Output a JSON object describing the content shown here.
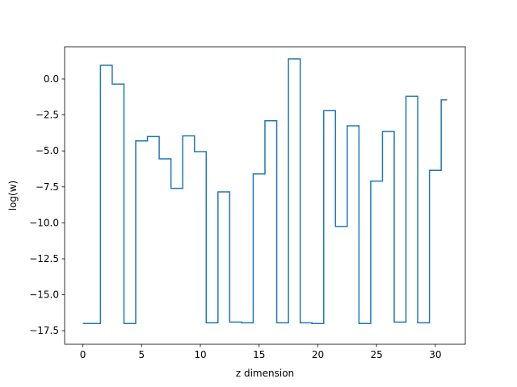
{
  "chart_data": {
    "type": "line",
    "drawstyle": "steps-mid",
    "xlabel": "z dimension",
    "ylabel": "log(w)",
    "xlim": [
      -1.55,
      32.55
    ],
    "ylim": [
      -18.44,
      2.24
    ],
    "xticks": [
      0,
      5,
      10,
      15,
      20,
      25,
      30
    ],
    "xtick_labels": [
      "0",
      "5",
      "10",
      "15",
      "20",
      "25",
      "30"
    ],
    "yticks": [
      -17.5,
      -15.0,
      -12.5,
      -10.0,
      -7.5,
      -5.0,
      -2.5,
      0.0
    ],
    "ytick_labels": [
      "−17.5",
      "−15.0",
      "−12.5",
      "−10.0",
      "−7.5",
      "−5.0",
      "−2.5",
      "0.0"
    ],
    "grid": false,
    "line_color": "#1f77b4",
    "series": [
      {
        "x": [
          0,
          1,
          2,
          3,
          4,
          5,
          6,
          7,
          8,
          9,
          10,
          11,
          12,
          13,
          14,
          15,
          16,
          17,
          18,
          19,
          20,
          21,
          22,
          23,
          24,
          25,
          26,
          27,
          28,
          29,
          30,
          31
        ],
        "values": [
          -17.0,
          -17.0,
          0.95,
          -0.35,
          -17.0,
          -4.3,
          -4.0,
          -5.55,
          -7.6,
          -3.95,
          -5.05,
          -16.95,
          -7.85,
          -16.9,
          -16.95,
          -6.6,
          -2.9,
          -16.95,
          1.4,
          -16.95,
          -17.0,
          -2.2,
          -10.25,
          -3.25,
          -17.0,
          -7.1,
          -3.65,
          -16.9,
          -1.2,
          -16.95,
          -6.35,
          -1.45
        ]
      }
    ]
  }
}
